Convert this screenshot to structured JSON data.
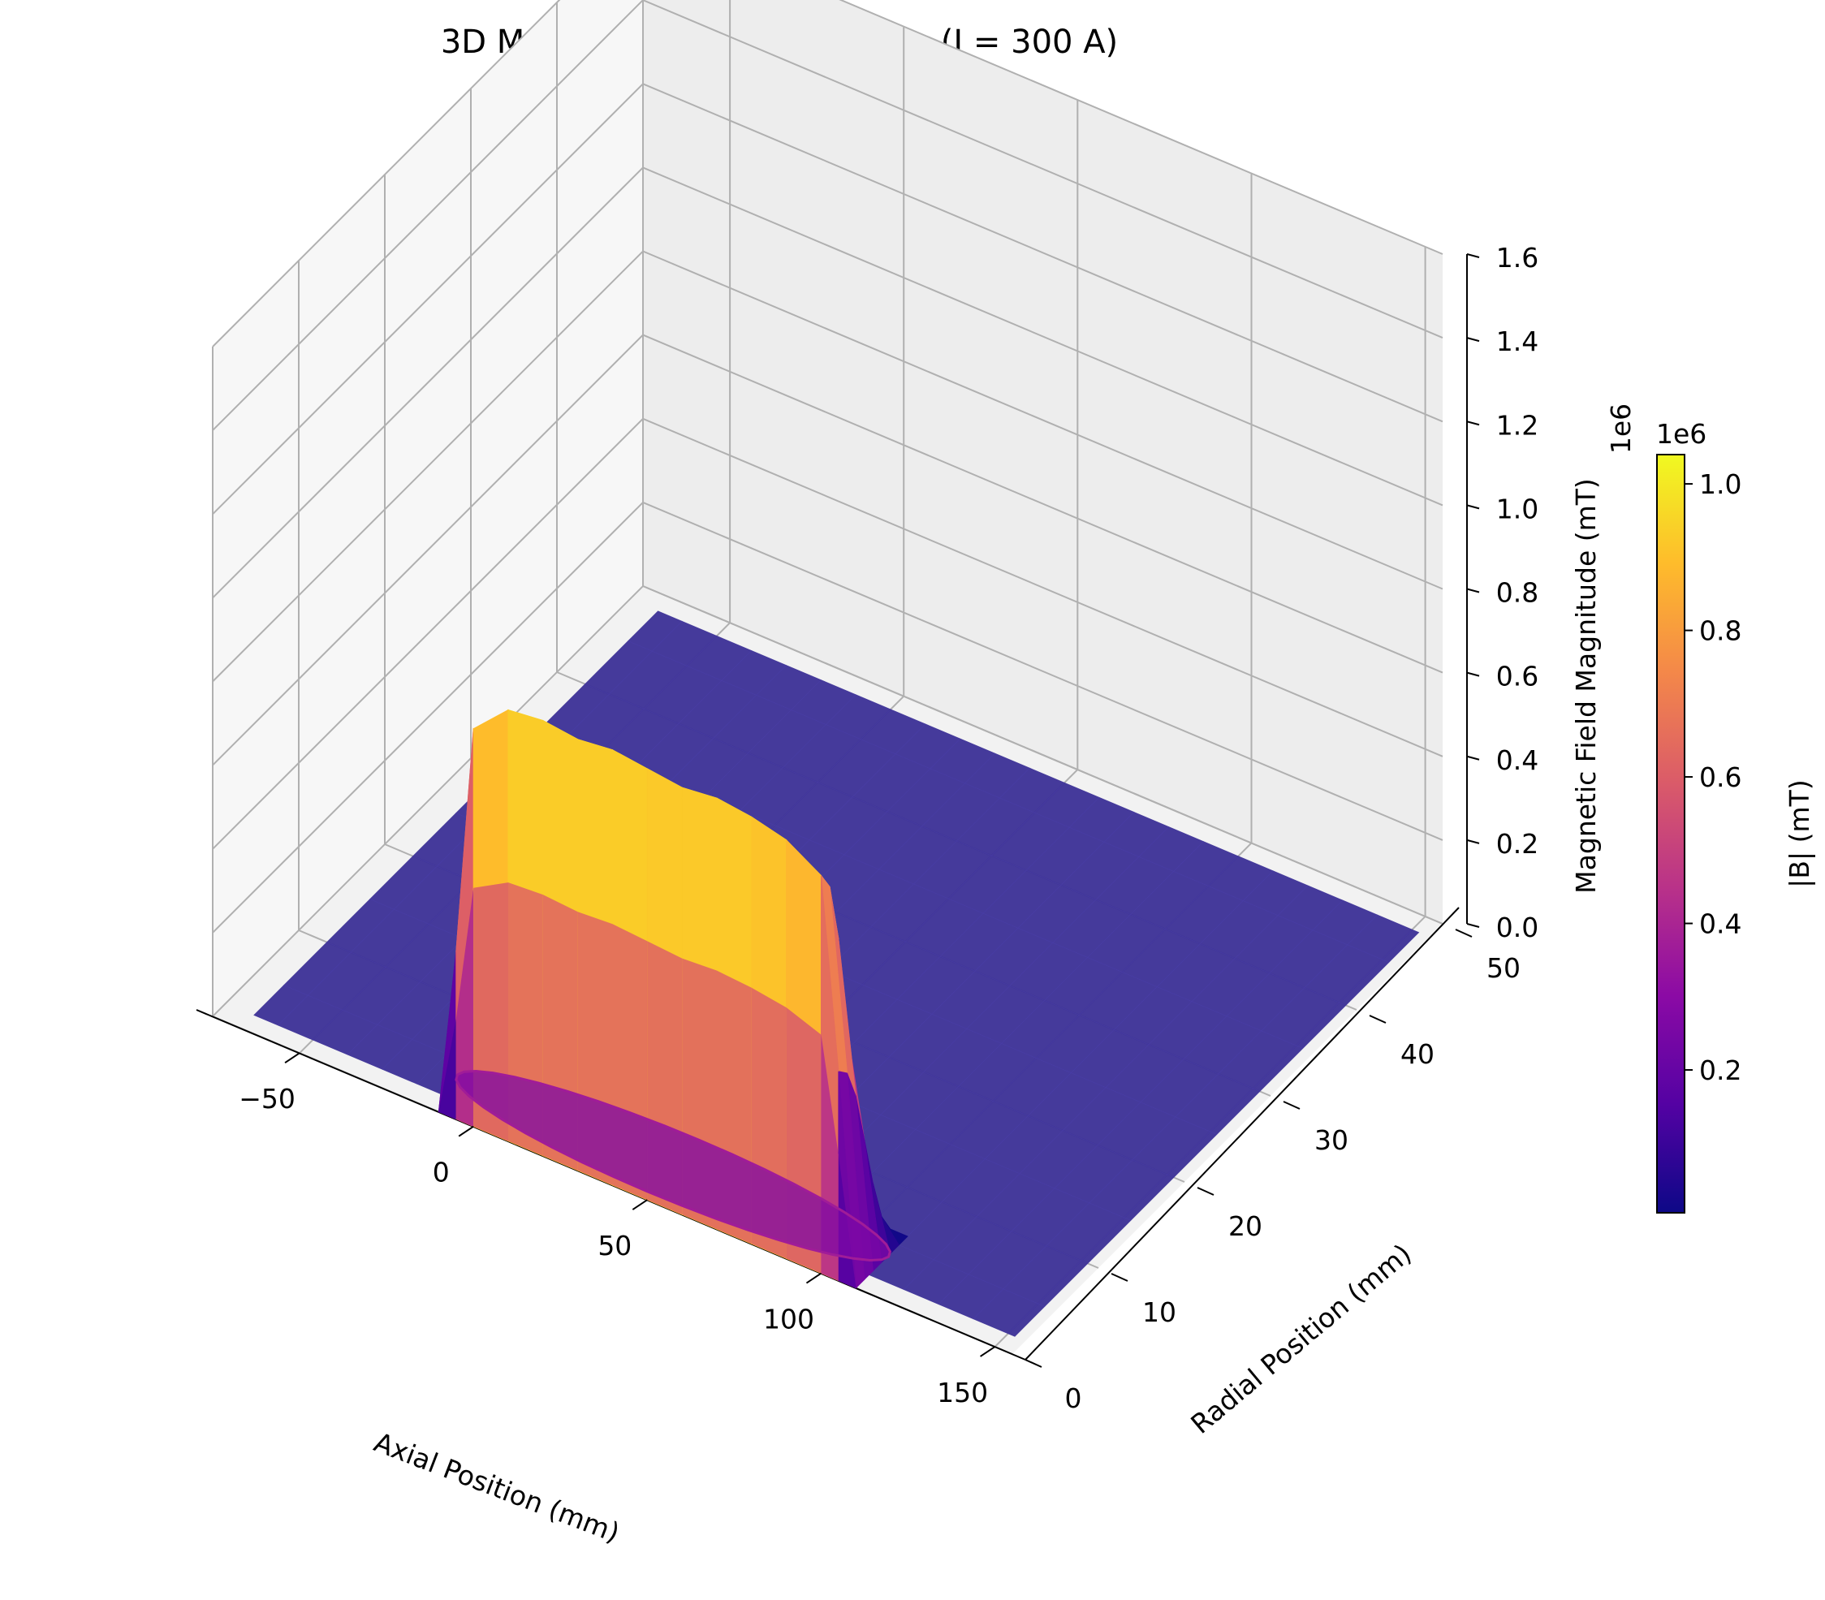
{
  "chart_data": {
    "type": "surface3d",
    "title": "3D Magnetic Field Distribution (I = 300 A)",
    "xlabel": "Axial Position (mm)",
    "ylabel": "Radial Position (mm)",
    "zlabel": "Magnetic Field Magnitude (mT)",
    "z_offset_text": "1e6",
    "xlim": [
      -75,
      155
    ],
    "ylim": [
      0,
      50
    ],
    "zlim": [
      0,
      1.6
    ],
    "x_ticks": [
      -50,
      0,
      50,
      100,
      150
    ],
    "x_tick_labels": [
      "−50",
      "0",
      "50",
      "100",
      "150"
    ],
    "y_ticks": [
      0,
      10,
      20,
      30,
      40,
      50
    ],
    "y_tick_labels": [
      "0",
      "10",
      "20",
      "30",
      "40",
      "50"
    ],
    "z_ticks": [
      0,
      0.2,
      0.4,
      0.6,
      0.8,
      1.0,
      1.2,
      1.4,
      1.6
    ],
    "z_tick_labels": [
      "0.0",
      "0.2",
      "0.4",
      "0.6",
      "0.8",
      "1.0",
      "1.2",
      "1.4",
      "1.6"
    ],
    "colormap": "plasma",
    "surface": {
      "base_value": 0.0,
      "peak_value": 1.04,
      "peak_axial_range_mm": [
        0,
        100
      ],
      "peak_radial_mm": 0,
      "axial_profile": {
        "x": [
          -10,
          -5,
          0,
          10,
          20,
          30,
          40,
          50,
          60,
          70,
          80,
          90,
          100,
          105,
          110
        ],
        "z": [
          0.0,
          0.4,
          0.95,
          1.03,
          1.04,
          1.03,
          1.04,
          1.03,
          1.02,
          1.03,
          1.02,
          1.0,
          0.95,
          0.5,
          0.0
        ]
      },
      "radial_profile": {
        "r": [
          0,
          1,
          2,
          3,
          4,
          5,
          6
        ],
        "factor": [
          1.0,
          0.95,
          0.8,
          0.55,
          0.3,
          0.1,
          0.0
        ]
      }
    },
    "colorbar": {
      "label": "|B| (mT)",
      "offset_text": "1e6",
      "range": [
        0.005,
        1.04
      ],
      "ticks": [
        0.2,
        0.4,
        0.6,
        0.8,
        1.0
      ],
      "tick_labels": [
        "0.2",
        "0.4",
        "0.6",
        "0.8",
        "1.0"
      ]
    },
    "colors": {
      "pane": "#f2f2f2",
      "grid": "#b0b0b0",
      "surface_base": "#3b2f96",
      "edge": "#4a3da6"
    }
  }
}
